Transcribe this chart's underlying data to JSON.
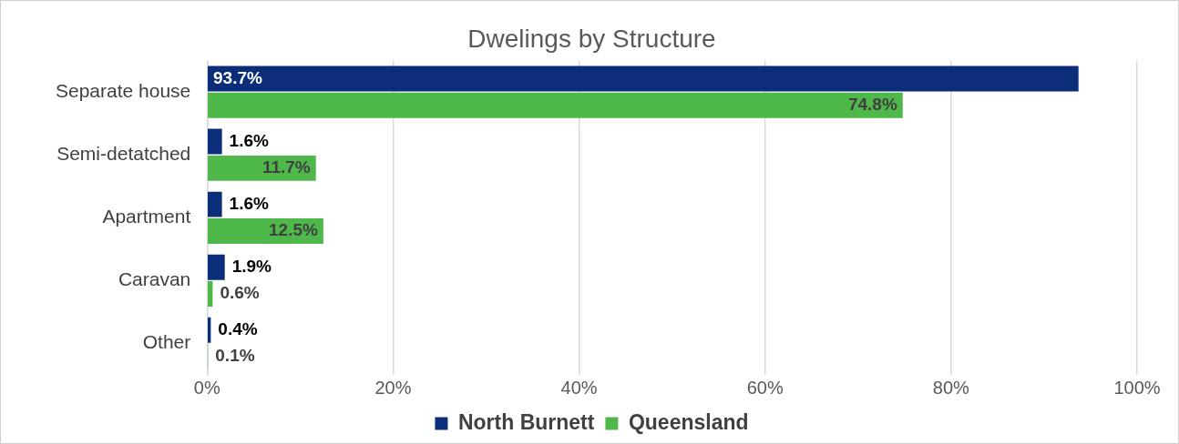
{
  "chart_data": {
    "type": "bar",
    "orientation": "horizontal",
    "title": "Dwelings by Structure",
    "categories": [
      "Separate house",
      "Semi-detatched",
      "Apartment",
      "Caravan",
      "Other"
    ],
    "series": [
      {
        "name": "North Burnett",
        "color": "#0c2d7a",
        "values": [
          93.7,
          1.6,
          1.6,
          1.9,
          0.4
        ],
        "value_labels": [
          "93.7%",
          "1.6%",
          "1.6%",
          "1.9%",
          "0.4%"
        ]
      },
      {
        "name": "Queensland",
        "color": "#4eb84a",
        "values": [
          74.8,
          11.7,
          12.5,
          0.6,
          0.1
        ],
        "value_labels": [
          "74.8%",
          "11.7%",
          "12.5%",
          "0.6%",
          "0.1%"
        ]
      }
    ],
    "xlim": [
      0,
      100
    ],
    "xticks": [
      {
        "value": 0,
        "label": "0%"
      },
      {
        "value": 20,
        "label": "20%"
      },
      {
        "value": 40,
        "label": "40%"
      },
      {
        "value": 60,
        "label": "60%"
      },
      {
        "value": 80,
        "label": "80%"
      },
      {
        "value": 100,
        "label": "100%"
      }
    ],
    "grid": "x",
    "legend": "bottom"
  }
}
